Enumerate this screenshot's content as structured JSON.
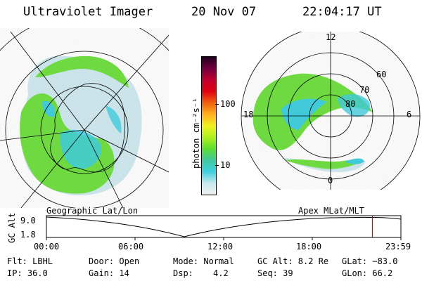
{
  "header": {
    "instrument": "Ultraviolet Imager",
    "date": "20 Nov 07",
    "time": "22:04:17 UT"
  },
  "colors": {
    "aurora_green": "#66dd33",
    "aurora_cyan": "#33ccdd",
    "aurora_pale": "#cce8ee",
    "aurora_yellow": "#ccee44",
    "marker": "#dd0000"
  },
  "colorbar": {
    "label": "photon cm⁻²s⁻¹",
    "ticks": [
      "100",
      "10"
    ],
    "scale": "log",
    "stops": [
      "#f0f0f0",
      "#c8e8ee",
      "#40d0dd",
      "#40c8a0",
      "#60dd30",
      "#b0f020",
      "#f0f020",
      "#ffb020",
      "#f06010",
      "#e00010",
      "#c00030",
      "#700040",
      "#200020"
    ]
  },
  "left_map": {
    "title": "Geographic Lat/Lon"
  },
  "right_map": {
    "title": "Apex MLat/MLT",
    "mlt_labels": [
      "12",
      "18",
      "6",
      "0"
    ],
    "lat_labels": [
      "60",
      "70",
      "80"
    ]
  },
  "timeline": {
    "ylabel": "GC Alt",
    "yticks": [
      "9.0",
      "1.8"
    ],
    "xticks": [
      "00:00",
      "06:00",
      "12:00",
      "18:00",
      "23:59"
    ],
    "marker_hour": 22.07
  },
  "footer": {
    "flt": "Flt: LBHL",
    "ip": "IP: 36.0",
    "door": "Door: Open",
    "gain": "Gain: 14",
    "mode": "Mode: Normal",
    "dsp_label": "Dsp:",
    "dsp_value": "4.2",
    "gc_alt": "GC Alt: 8.2 Re",
    "seq": "Seq: 39",
    "glat": "GLat: −83.0",
    "glon": "GLon:  66.2"
  }
}
